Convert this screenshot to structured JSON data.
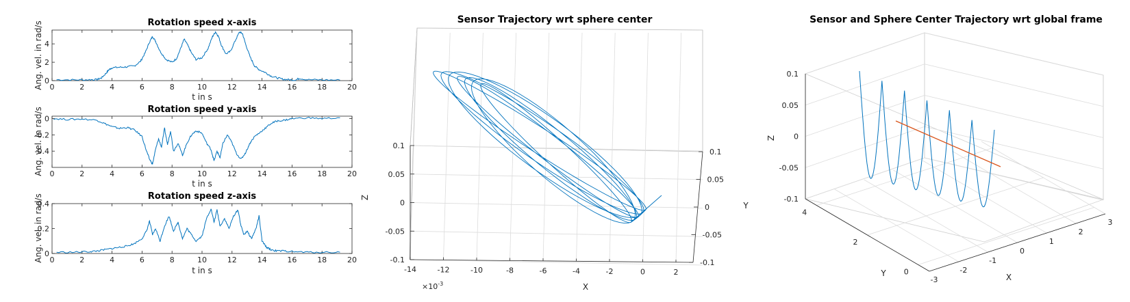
{
  "chart_data": [
    {
      "type": "line",
      "title": "Rotation speed x-axis",
      "xlabel": "t in s",
      "ylabel": "Ang. vel. in rad/s",
      "xlim": [
        0,
        20
      ],
      "ylim": [
        0,
        5.5
      ],
      "xticks": [
        0,
        2,
        4,
        6,
        8,
        10,
        12,
        14,
        16,
        18,
        20
      ],
      "yticks": [
        0,
        2,
        4
      ],
      "series": [
        {
          "color": "#0072BD",
          "x": [
            0.3,
            1.5,
            2.5,
            3.0,
            3.3,
            3.6,
            3.8,
            4.0,
            4.5,
            5.0,
            5.5,
            5.9,
            6.2,
            6.5,
            6.7,
            6.9,
            7.2,
            7.6,
            8.0,
            8.3,
            8.6,
            8.8,
            9.0,
            9.3,
            9.6,
            10.0,
            10.4,
            10.7,
            10.9,
            11.1,
            11.3,
            11.6,
            11.9,
            12.2,
            12.5,
            12.7,
            12.9,
            13.2,
            13.5,
            13.8,
            14.2,
            14.6,
            15.0,
            15.4,
            15.8,
            16.2,
            16.5,
            17.0,
            18.0,
            19.2
          ],
          "y": [
            0.1,
            0.08,
            0.1,
            0.12,
            0.3,
            0.8,
            1.2,
            1.4,
            1.45,
            1.5,
            1.6,
            2.1,
            3.0,
            4.2,
            4.8,
            4.3,
            3.2,
            2.3,
            2.0,
            2.4,
            3.6,
            4.5,
            4.0,
            3.0,
            2.3,
            2.5,
            3.5,
            4.8,
            5.3,
            4.8,
            3.8,
            2.9,
            3.2,
            4.3,
            5.3,
            5.1,
            4.0,
            2.6,
            1.6,
            1.2,
            0.9,
            0.5,
            0.3,
            0.15,
            0.1,
            0.05,
            0.25,
            0.1,
            0.08,
            0.05
          ]
        }
      ]
    },
    {
      "type": "line",
      "title": "Rotation speed y-axis",
      "xlabel": "t in s",
      "ylabel": "Ang. vel. in rad/s",
      "xlim": [
        0,
        20
      ],
      "ylim": [
        -0.6,
        0.03
      ],
      "xticks": [
        0,
        2,
        4,
        6,
        8,
        10,
        12,
        14,
        16,
        18,
        20
      ],
      "yticks": [
        0,
        -0.2,
        -0.4
      ],
      "series": [
        {
          "color": "#0072BD",
          "x": [
            0.1,
            1.0,
            2.0,
            3.0,
            3.5,
            4.0,
            4.5,
            5.0,
            5.5,
            6.0,
            6.3,
            6.5,
            6.7,
            6.9,
            7.1,
            7.3,
            7.5,
            7.7,
            7.9,
            8.1,
            8.4,
            8.7,
            9.0,
            9.3,
            9.6,
            10.0,
            10.3,
            10.6,
            10.8,
            11.0,
            11.2,
            11.4,
            11.7,
            12.0,
            12.3,
            12.6,
            12.9,
            13.2,
            13.5,
            13.8,
            14.2,
            14.6,
            15.0,
            15.5,
            16.0,
            17.0,
            18.0,
            19.2
          ],
          "y": [
            0.0,
            -0.01,
            -0.005,
            -0.02,
            -0.06,
            -0.1,
            -0.12,
            -0.11,
            -0.14,
            -0.22,
            -0.4,
            -0.5,
            -0.56,
            -0.38,
            -0.25,
            -0.35,
            -0.12,
            -0.32,
            -0.15,
            -0.4,
            -0.3,
            -0.45,
            -0.3,
            -0.2,
            -0.15,
            -0.18,
            -0.3,
            -0.38,
            -0.52,
            -0.4,
            -0.48,
            -0.3,
            -0.2,
            -0.3,
            -0.43,
            -0.5,
            -0.42,
            -0.3,
            -0.22,
            -0.18,
            -0.12,
            -0.06,
            -0.03,
            -0.02,
            0.0,
            0.01,
            0.0,
            0.01
          ]
        }
      ]
    },
    {
      "type": "line",
      "title": "Rotation speed z-axis",
      "xlabel": "t in s",
      "ylabel": "Ang. vel. in rad/s",
      "xlim": [
        0,
        20
      ],
      "ylim": [
        0,
        0.4
      ],
      "xticks": [
        0,
        2,
        4,
        6,
        8,
        10,
        12,
        14,
        16,
        18,
        20
      ],
      "yticks": [
        0,
        0.2,
        0.4
      ],
      "series": [
        {
          "color": "#0072BD",
          "x": [
            0.3,
            1.5,
            2.5,
            3.0,
            3.5,
            4.0,
            4.5,
            5.0,
            5.5,
            6.0,
            6.3,
            6.5,
            6.7,
            6.9,
            7.2,
            7.5,
            7.8,
            8.1,
            8.4,
            8.7,
            9.0,
            9.3,
            9.6,
            10.0,
            10.3,
            10.6,
            10.8,
            11.0,
            11.2,
            11.5,
            11.8,
            12.1,
            12.4,
            12.6,
            12.8,
            13.0,
            13.3,
            13.6,
            13.8,
            14.0,
            14.3,
            14.6,
            15.0,
            15.5,
            16.0,
            17.0,
            18.0,
            19.2
          ],
          "y": [
            0.01,
            0.01,
            0.015,
            0.02,
            0.03,
            0.04,
            0.05,
            0.06,
            0.08,
            0.12,
            0.18,
            0.26,
            0.15,
            0.2,
            0.1,
            0.22,
            0.3,
            0.18,
            0.25,
            0.12,
            0.2,
            0.15,
            0.1,
            0.14,
            0.28,
            0.36,
            0.25,
            0.35,
            0.22,
            0.28,
            0.2,
            0.3,
            0.35,
            0.22,
            0.15,
            0.18,
            0.12,
            0.2,
            0.3,
            0.1,
            0.05,
            0.03,
            0.02,
            0.02,
            0.015,
            0.01,
            0.01,
            0.01
          ]
        }
      ]
    },
    {
      "type": "line",
      "title": "Sensor Trajectory wrt sphere center",
      "xlabel": "X",
      "ylabel": "Y",
      "zlabel": "Z",
      "x_exponent_label": "×10",
      "x_exponent_power": "-3",
      "xticks": [
        "-14",
        "-12",
        "-10",
        "-8",
        "-6",
        "-4",
        "-2",
        "0",
        "2"
      ],
      "yticks": [
        "0.1",
        "0.05",
        "0",
        "-0.05",
        "-0.1"
      ],
      "zticks": [
        "0.1",
        "0.05",
        "0",
        "-0.05",
        "-0.1"
      ],
      "series": [
        {
          "color": "#0072BD",
          "loops": 7
        }
      ]
    },
    {
      "type": "line",
      "title": "Sensor and Sphere Center Trajectory wrt global frame",
      "xlabel": "X",
      "ylabel": "Y",
      "zlabel": "Z",
      "xticks": [
        "-3",
        "-2",
        "-1",
        "0",
        "1",
        "2",
        "3"
      ],
      "yticks": [
        "0",
        "2",
        "4"
      ],
      "zticks": [
        "0.1",
        "0.05",
        "0",
        "-0.05",
        "-0.1"
      ],
      "series": [
        {
          "name": "",
          "color": "#0072BD",
          "arches": 6
        },
        {
          "name": "",
          "color": "#D95319"
        }
      ]
    }
  ]
}
